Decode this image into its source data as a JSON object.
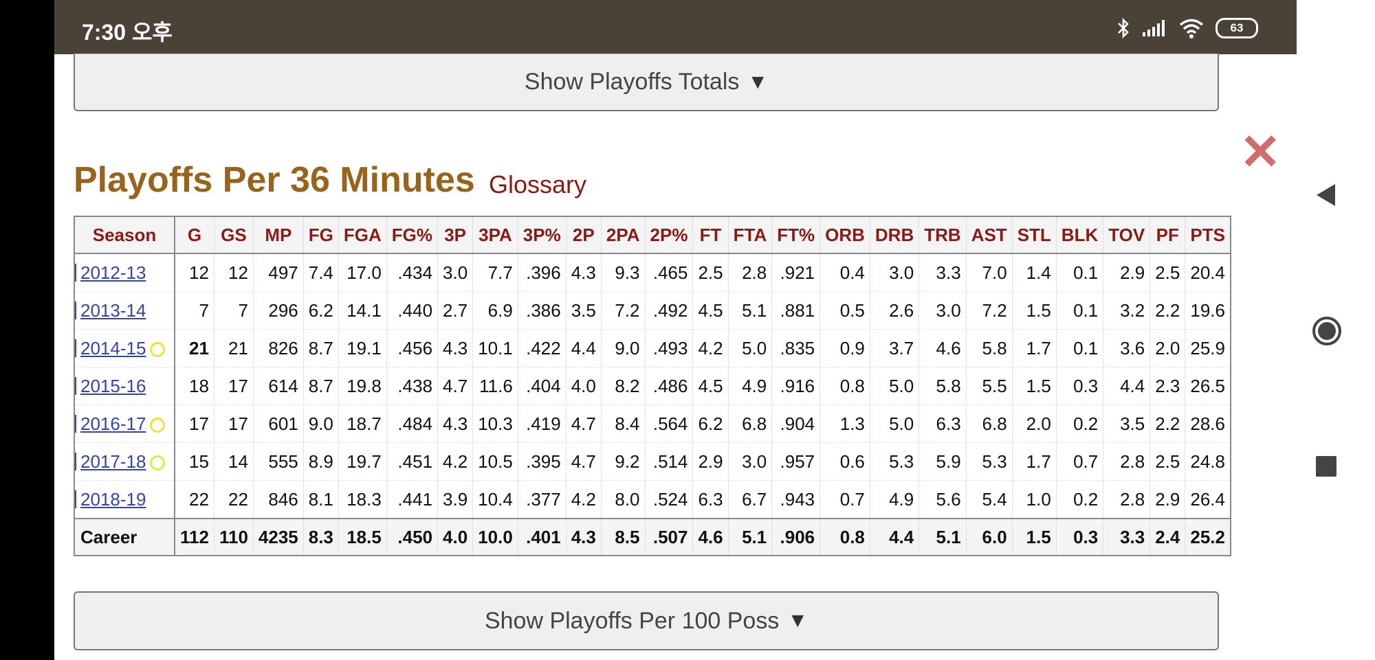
{
  "status_bar": {
    "time": "7:30 오후",
    "battery": "63"
  },
  "buttons": {
    "totals": "Show Playoffs Totals",
    "per100": "Show Playoffs Per 100 Poss",
    "arrow": "▼"
  },
  "section": {
    "title": "Playoffs Per 36 Minutes",
    "glossary": "Glossary",
    "close": "✕"
  },
  "table": {
    "headers": [
      "Season",
      "G",
      "GS",
      "MP",
      "FG",
      "FGA",
      "FG%",
      "3P",
      "3PA",
      "3P%",
      "2P",
      "2PA",
      "2P%",
      "FT",
      "FTA",
      "FT%",
      "ORB",
      "DRB",
      "TRB",
      "AST",
      "STL",
      "BLK",
      "TOV",
      "PF",
      "PTS"
    ],
    "rows": [
      {
        "season": "2012-13",
        "ring": false,
        "bold_g": false,
        "values": [
          "12",
          "12",
          "497",
          "7.4",
          "17.0",
          ".434",
          "3.0",
          "7.7",
          ".396",
          "4.3",
          "9.3",
          ".465",
          "2.5",
          "2.8",
          ".921",
          "0.4",
          "3.0",
          "3.3",
          "7.0",
          "1.4",
          "0.1",
          "2.9",
          "2.5",
          "20.4"
        ]
      },
      {
        "season": "2013-14",
        "ring": false,
        "bold_g": false,
        "values": [
          "7",
          "7",
          "296",
          "6.2",
          "14.1",
          ".440",
          "2.7",
          "6.9",
          ".386",
          "3.5",
          "7.2",
          ".492",
          "4.5",
          "5.1",
          ".881",
          "0.5",
          "2.6",
          "3.0",
          "7.2",
          "1.5",
          "0.1",
          "3.2",
          "2.2",
          "19.6"
        ]
      },
      {
        "season": "2014-15",
        "ring": true,
        "bold_g": true,
        "values": [
          "21",
          "21",
          "826",
          "8.7",
          "19.1",
          ".456",
          "4.3",
          "10.1",
          ".422",
          "4.4",
          "9.0",
          ".493",
          "4.2",
          "5.0",
          ".835",
          "0.9",
          "3.7",
          "4.6",
          "5.8",
          "1.7",
          "0.1",
          "3.6",
          "2.0",
          "25.9"
        ]
      },
      {
        "season": "2015-16",
        "ring": false,
        "bold_g": false,
        "values": [
          "18",
          "17",
          "614",
          "8.7",
          "19.8",
          ".438",
          "4.7",
          "11.6",
          ".404",
          "4.0",
          "8.2",
          ".486",
          "4.5",
          "4.9",
          ".916",
          "0.8",
          "5.0",
          "5.8",
          "5.5",
          "1.5",
          "0.3",
          "4.4",
          "2.3",
          "26.5"
        ]
      },
      {
        "season": "2016-17",
        "ring": true,
        "bold_g": false,
        "values": [
          "17",
          "17",
          "601",
          "9.0",
          "18.7",
          ".484",
          "4.3",
          "10.3",
          ".419",
          "4.7",
          "8.4",
          ".564",
          "6.2",
          "6.8",
          ".904",
          "1.3",
          "5.0",
          "6.3",
          "6.8",
          "2.0",
          "0.2",
          "3.5",
          "2.2",
          "28.6"
        ]
      },
      {
        "season": "2017-18",
        "ring": true,
        "bold_g": false,
        "values": [
          "15",
          "14",
          "555",
          "8.9",
          "19.7",
          ".451",
          "4.2",
          "10.5",
          ".395",
          "4.7",
          "9.2",
          ".514",
          "2.9",
          "3.0",
          ".957",
          "0.6",
          "5.3",
          "5.9",
          "5.3",
          "1.7",
          "0.7",
          "2.8",
          "2.5",
          "24.8"
        ]
      },
      {
        "season": "2018-19",
        "ring": false,
        "bold_g": false,
        "values": [
          "22",
          "22",
          "846",
          "8.1",
          "18.3",
          ".441",
          "3.9",
          "10.4",
          ".377",
          "4.2",
          "8.0",
          ".524",
          "6.3",
          "6.7",
          ".943",
          "0.7",
          "4.9",
          "5.6",
          "5.4",
          "1.0",
          "0.2",
          "2.8",
          "2.9",
          "26.4"
        ]
      }
    ],
    "career": {
      "label": "Career",
      "values": [
        "112",
        "110",
        "4235",
        "8.3",
        "18.5",
        ".450",
        "4.0",
        "10.0",
        ".401",
        "4.3",
        "8.5",
        ".507",
        "4.6",
        "5.1",
        ".906",
        "0.8",
        "4.4",
        "5.1",
        "6.0",
        "1.5",
        "0.3",
        "3.3",
        "2.4",
        "25.2"
      ]
    }
  },
  "icons": [
    "bluetooth-icon",
    "signal-icon",
    "wifi-icon",
    "battery-icon",
    "nav-back-icon",
    "nav-home-icon",
    "nav-recents-icon",
    "close-icon",
    "championship-ring-icon"
  ]
}
